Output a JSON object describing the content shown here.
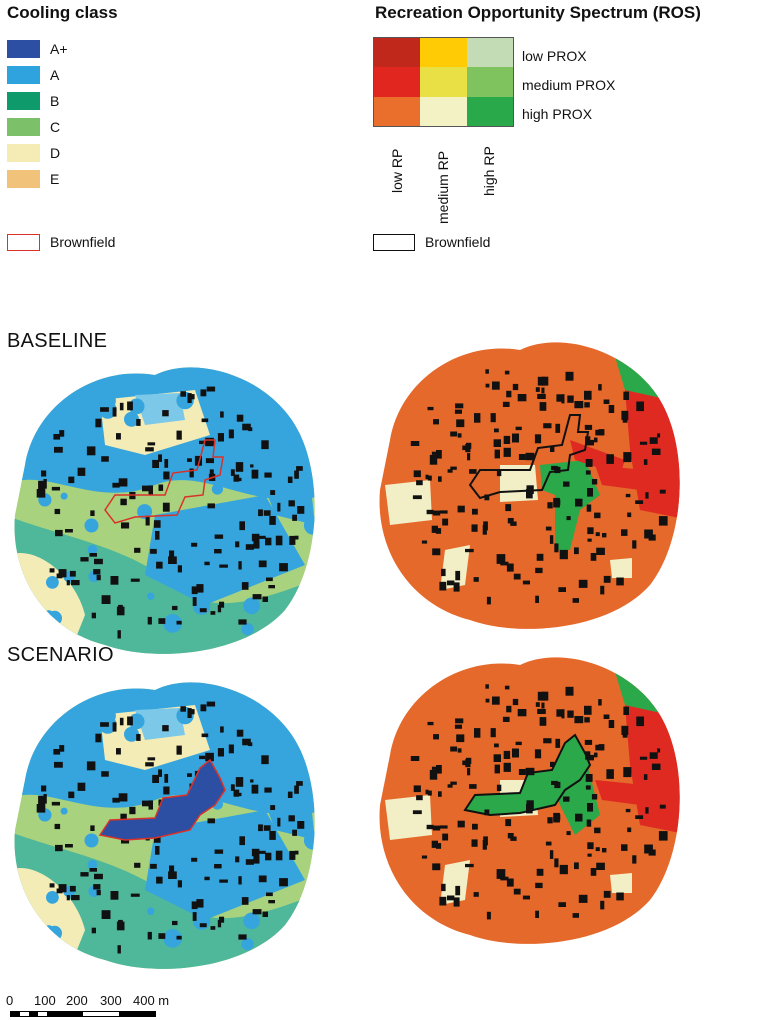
{
  "cooling_legend": {
    "title": "Cooling class",
    "classes": [
      {
        "label": "A+",
        "color": "#2c4ea3"
      },
      {
        "label": "A",
        "color": "#2ea3de"
      },
      {
        "label": "B",
        "color": "#0f9a6c"
      },
      {
        "label": "C",
        "color": "#7cc06a"
      },
      {
        "label": "D",
        "color": "#f4ecb4"
      },
      {
        "label": "E",
        "color": "#f0c27a"
      }
    ],
    "brownfield_label": "Brownfield",
    "brownfield_color": "#d9322a"
  },
  "ros_legend": {
    "title": "Recreation Opportunity Spectrum (ROS)",
    "prox_labels": [
      "low PROX",
      "medium PROX",
      "high PROX"
    ],
    "rp_labels": [
      "low RP",
      "medium RP",
      "high RP"
    ],
    "matrix_colors": [
      [
        "#c0281c",
        "#ffcb05",
        "#c3dcb6"
      ],
      [
        "#e0261f",
        "#e9e045",
        "#7fc35f"
      ],
      [
        "#ea6e2c",
        "#f3f2c5",
        "#29a94a"
      ]
    ],
    "brownfield_label": "Brownfield",
    "brownfield_color": "#111111"
  },
  "sections": {
    "baseline": "BASELINE",
    "scenario": "SCENARIO"
  },
  "map_colors": {
    "orange": "#e5692b",
    "cream": "#f2efc6",
    "green": "#2ba84a",
    "red": "#df2a22",
    "blue": "#36a4dd",
    "light_blue": "#7cc8e8",
    "teal": "#4fb79a",
    "light_green": "#a8d27e",
    "yellow_cream": "#f3ecb7",
    "dark_blue": "#2c4ea3",
    "building": "#111111"
  },
  "scale_bar": {
    "labels": [
      "0",
      "100",
      "200",
      "300",
      "400 m"
    ]
  }
}
